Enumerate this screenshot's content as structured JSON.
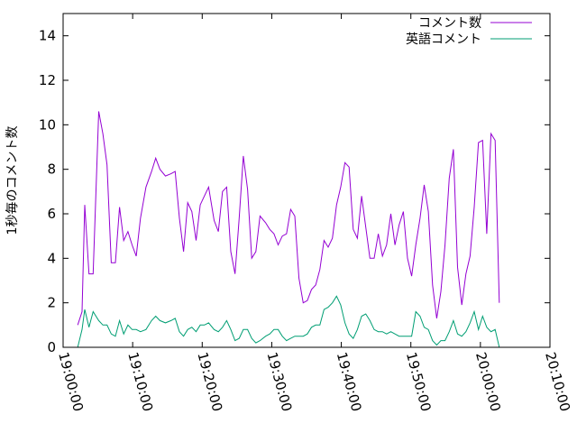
{
  "chart_data": {
    "type": "line",
    "ylabel": "1秒毎のコメント数",
    "xlabel": "",
    "ylim": [
      0,
      15
    ],
    "yticks": [
      0,
      2,
      4,
      6,
      8,
      10,
      12,
      14
    ],
    "xlim": [
      "19:00:00",
      "20:10:00"
    ],
    "xticks": [
      "19:00:00",
      "19:10:00",
      "19:20:00",
      "19:30:00",
      "19:40:00",
      "19:50:00",
      "20:00:00",
      "20:10:00"
    ],
    "legend_position": "top-right",
    "grid": false,
    "series": [
      {
        "name": "コメント数",
        "color": "#9400d3",
        "points": [
          [
            "19:02:06",
            1.0
          ],
          [
            "19:02:43",
            1.6
          ],
          [
            "19:03:07",
            6.4
          ],
          [
            "19:03:43",
            3.3
          ],
          [
            "19:04:19",
            3.3
          ],
          [
            "19:05:07",
            10.6
          ],
          [
            "19:05:43",
            9.6
          ],
          [
            "19:06:19",
            8.2
          ],
          [
            "19:06:55",
            3.8
          ],
          [
            "19:07:31",
            3.8
          ],
          [
            "19:08:07",
            6.3
          ],
          [
            "19:08:43",
            4.8
          ],
          [
            "19:09:19",
            5.2
          ],
          [
            "19:09:55",
            4.6
          ],
          [
            "19:10:31",
            4.1
          ],
          [
            "19:11:07",
            5.8
          ],
          [
            "19:11:55",
            7.2
          ],
          [
            "19:12:43",
            7.9
          ],
          [
            "19:13:19",
            8.5
          ],
          [
            "19:13:55",
            8.0
          ],
          [
            "19:14:43",
            7.7
          ],
          [
            "19:15:31",
            7.8
          ],
          [
            "19:16:07",
            7.9
          ],
          [
            "19:16:43",
            5.8
          ],
          [
            "19:17:19",
            4.3
          ],
          [
            "19:17:55",
            6.5
          ],
          [
            "19:18:31",
            6.1
          ],
          [
            "19:19:07",
            4.8
          ],
          [
            "19:19:43",
            6.4
          ],
          [
            "19:20:19",
            6.8
          ],
          [
            "19:20:55",
            7.2
          ],
          [
            "19:21:43",
            5.7
          ],
          [
            "19:22:19",
            5.2
          ],
          [
            "19:22:55",
            7.0
          ],
          [
            "19:23:31",
            7.2
          ],
          [
            "19:24:07",
            4.3
          ],
          [
            "19:24:43",
            3.3
          ],
          [
            "19:25:19",
            5.8
          ],
          [
            "19:25:55",
            8.6
          ],
          [
            "19:26:31",
            7.1
          ],
          [
            "19:27:07",
            4.0
          ],
          [
            "19:27:43",
            4.3
          ],
          [
            "19:28:19",
            5.9
          ],
          [
            "19:29:07",
            5.6
          ],
          [
            "19:29:43",
            5.3
          ],
          [
            "19:30:19",
            5.1
          ],
          [
            "19:30:55",
            4.6
          ],
          [
            "19:31:31",
            5.0
          ],
          [
            "19:32:07",
            5.1
          ],
          [
            "19:32:43",
            6.2
          ],
          [
            "19:33:19",
            5.9
          ],
          [
            "19:33:55",
            3.1
          ],
          [
            "19:34:31",
            2.0
          ],
          [
            "19:35:07",
            2.1
          ],
          [
            "19:35:43",
            2.6
          ],
          [
            "19:36:19",
            2.8
          ],
          [
            "19:36:55",
            3.5
          ],
          [
            "19:37:31",
            4.8
          ],
          [
            "19:38:07",
            4.5
          ],
          [
            "19:38:43",
            4.9
          ],
          [
            "19:39:19",
            6.4
          ],
          [
            "19:39:55",
            7.2
          ],
          [
            "19:40:31",
            8.3
          ],
          [
            "19:41:07",
            8.1
          ],
          [
            "19:41:43",
            5.3
          ],
          [
            "19:42:19",
            4.9
          ],
          [
            "19:42:55",
            6.8
          ],
          [
            "19:43:31",
            5.4
          ],
          [
            "19:44:07",
            4.0
          ],
          [
            "19:44:43",
            4.0
          ],
          [
            "19:45:19",
            5.1
          ],
          [
            "19:45:55",
            4.1
          ],
          [
            "19:46:31",
            4.6
          ],
          [
            "19:47:07",
            6.0
          ],
          [
            "19:47:43",
            4.6
          ],
          [
            "19:48:19",
            5.5
          ],
          [
            "19:48:55",
            6.1
          ],
          [
            "19:49:31",
            4.0
          ],
          [
            "19:50:07",
            3.2
          ],
          [
            "19:50:43",
            4.6
          ],
          [
            "19:51:19",
            5.8
          ],
          [
            "19:51:55",
            7.3
          ],
          [
            "19:52:31",
            6.1
          ],
          [
            "19:53:07",
            2.8
          ],
          [
            "19:53:43",
            1.3
          ],
          [
            "19:54:19",
            2.5
          ],
          [
            "19:54:55",
            4.6
          ],
          [
            "19:55:31",
            7.6
          ],
          [
            "19:56:07",
            8.9
          ],
          [
            "19:56:43",
            3.6
          ],
          [
            "19:57:19",
            1.9
          ],
          [
            "19:57:55",
            3.3
          ],
          [
            "19:58:31",
            4.1
          ],
          [
            "19:59:07",
            6.3
          ],
          [
            "19:59:43",
            9.2
          ],
          [
            "20:00:19",
            9.3
          ],
          [
            "20:00:55",
            5.1
          ],
          [
            "20:01:31",
            9.6
          ],
          [
            "20:02:07",
            9.3
          ],
          [
            "20:02:43",
            2.0
          ]
        ]
      },
      {
        "name": "英語コメント",
        "color": "#009e73",
        "points": [
          [
            "19:02:06",
            0.0
          ],
          [
            "19:02:43",
            0.8
          ],
          [
            "19:03:07",
            1.7
          ],
          [
            "19:03:43",
            0.9
          ],
          [
            "19:04:19",
            1.6
          ],
          [
            "19:05:07",
            1.2
          ],
          [
            "19:05:43",
            1.0
          ],
          [
            "19:06:19",
            1.0
          ],
          [
            "19:06:55",
            0.6
          ],
          [
            "19:07:31",
            0.5
          ],
          [
            "19:08:07",
            1.2
          ],
          [
            "19:08:43",
            0.6
          ],
          [
            "19:09:19",
            1.0
          ],
          [
            "19:09:55",
            0.8
          ],
          [
            "19:10:31",
            0.8
          ],
          [
            "19:11:07",
            0.7
          ],
          [
            "19:11:55",
            0.8
          ],
          [
            "19:12:43",
            1.2
          ],
          [
            "19:13:19",
            1.4
          ],
          [
            "19:13:55",
            1.2
          ],
          [
            "19:14:43",
            1.1
          ],
          [
            "19:15:31",
            1.2
          ],
          [
            "19:16:07",
            1.3
          ],
          [
            "19:16:43",
            0.7
          ],
          [
            "19:17:19",
            0.5
          ],
          [
            "19:17:55",
            0.8
          ],
          [
            "19:18:31",
            0.9
          ],
          [
            "19:19:07",
            0.7
          ],
          [
            "19:19:43",
            1.0
          ],
          [
            "19:20:19",
            1.0
          ],
          [
            "19:20:55",
            1.1
          ],
          [
            "19:21:43",
            0.8
          ],
          [
            "19:22:19",
            0.7
          ],
          [
            "19:22:55",
            0.9
          ],
          [
            "19:23:31",
            1.2
          ],
          [
            "19:24:07",
            0.8
          ],
          [
            "19:24:43",
            0.3
          ],
          [
            "19:25:19",
            0.4
          ],
          [
            "19:25:55",
            0.8
          ],
          [
            "19:26:31",
            0.8
          ],
          [
            "19:27:07",
            0.4
          ],
          [
            "19:27:43",
            0.2
          ],
          [
            "19:28:19",
            0.3
          ],
          [
            "19:29:07",
            0.5
          ],
          [
            "19:29:43",
            0.6
          ],
          [
            "19:30:19",
            0.8
          ],
          [
            "19:30:55",
            0.8
          ],
          [
            "19:31:31",
            0.5
          ],
          [
            "19:32:07",
            0.3
          ],
          [
            "19:32:43",
            0.4
          ],
          [
            "19:33:19",
            0.5
          ],
          [
            "19:33:55",
            0.5
          ],
          [
            "19:34:31",
            0.5
          ],
          [
            "19:35:07",
            0.6
          ],
          [
            "19:35:43",
            0.9
          ],
          [
            "19:36:19",
            1.0
          ],
          [
            "19:36:55",
            1.0
          ],
          [
            "19:37:31",
            1.7
          ],
          [
            "19:38:07",
            1.8
          ],
          [
            "19:38:43",
            2.0
          ],
          [
            "19:39:19",
            2.3
          ],
          [
            "19:39:55",
            1.9
          ],
          [
            "19:40:31",
            1.1
          ],
          [
            "19:41:07",
            0.6
          ],
          [
            "19:41:43",
            0.4
          ],
          [
            "19:42:19",
            0.8
          ],
          [
            "19:42:55",
            1.4
          ],
          [
            "19:43:31",
            1.5
          ],
          [
            "19:44:07",
            1.2
          ],
          [
            "19:44:43",
            0.8
          ],
          [
            "19:45:19",
            0.7
          ],
          [
            "19:45:55",
            0.7
          ],
          [
            "19:46:31",
            0.6
          ],
          [
            "19:47:07",
            0.7
          ],
          [
            "19:47:43",
            0.6
          ],
          [
            "19:48:19",
            0.5
          ],
          [
            "19:48:55",
            0.5
          ],
          [
            "19:49:31",
            0.5
          ],
          [
            "19:50:07",
            0.5
          ],
          [
            "19:50:43",
            1.6
          ],
          [
            "19:51:19",
            1.4
          ],
          [
            "19:51:55",
            0.9
          ],
          [
            "19:52:31",
            0.8
          ],
          [
            "19:53:07",
            0.3
          ],
          [
            "19:53:43",
            0.1
          ],
          [
            "19:54:19",
            0.3
          ],
          [
            "19:54:55",
            0.3
          ],
          [
            "19:55:31",
            0.7
          ],
          [
            "19:56:07",
            1.2
          ],
          [
            "19:56:43",
            0.6
          ],
          [
            "19:57:19",
            0.5
          ],
          [
            "19:57:55",
            0.7
          ],
          [
            "19:58:31",
            1.1
          ],
          [
            "19:59:07",
            1.6
          ],
          [
            "19:59:43",
            0.8
          ],
          [
            "20:00:19",
            1.4
          ],
          [
            "20:00:55",
            0.9
          ],
          [
            "20:01:31",
            0.7
          ],
          [
            "20:02:07",
            0.8
          ],
          [
            "20:02:43",
            0.0
          ]
        ]
      }
    ]
  }
}
